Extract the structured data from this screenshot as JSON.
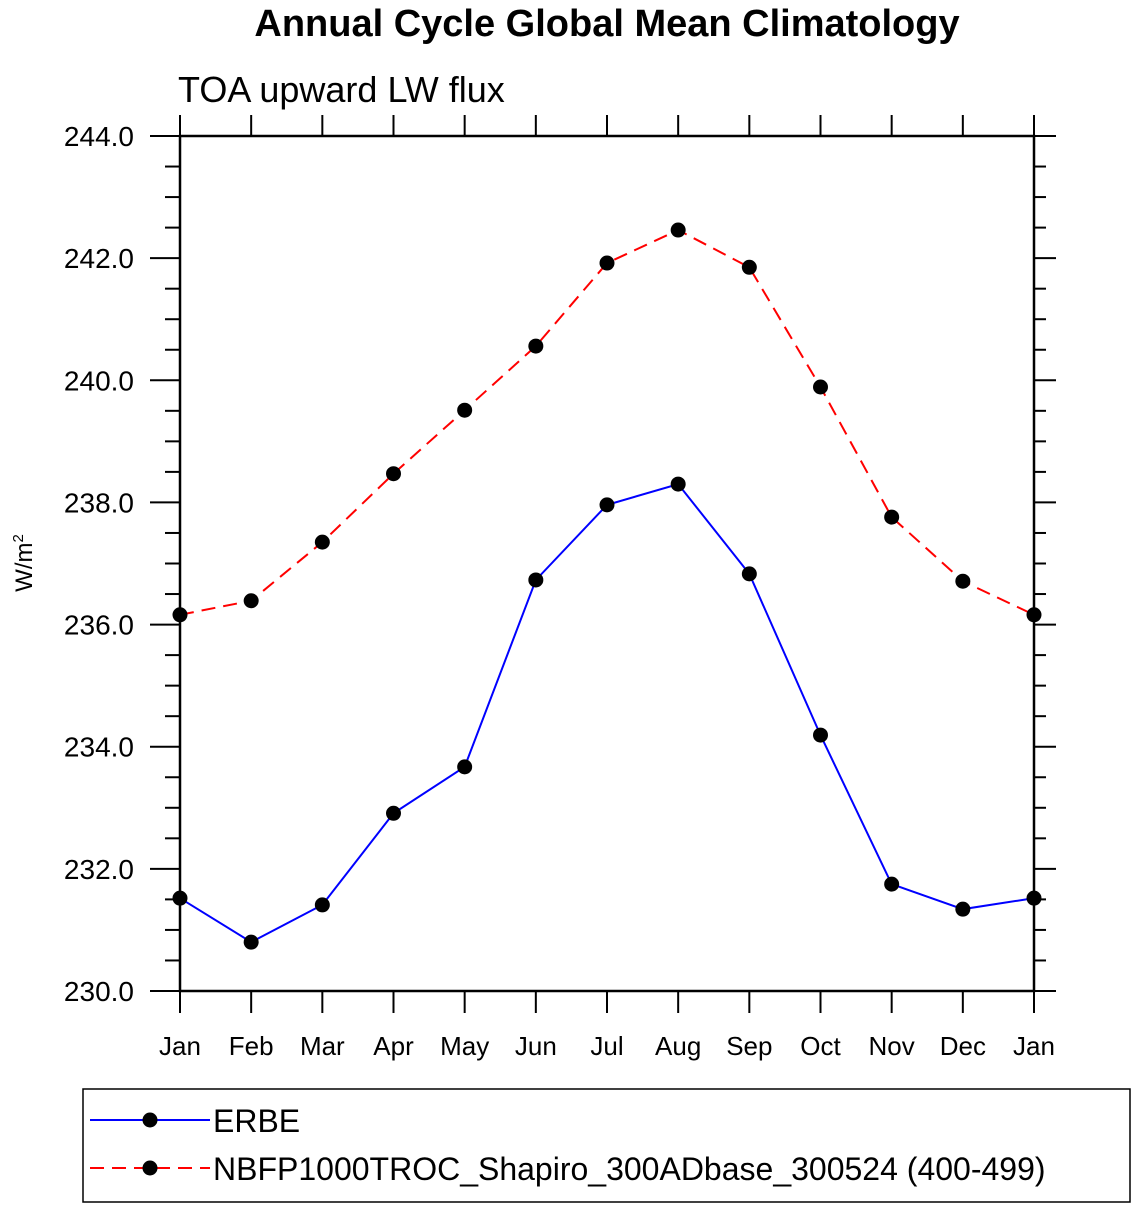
{
  "chart_data": {
    "type": "line",
    "title": "Annual Cycle Global Mean Climatology",
    "subtitle": "TOA upward LW flux",
    "xlabel": "",
    "ylabel": "W/m",
    "ylabel_sup": "2",
    "ylim": [
      230,
      244
    ],
    "yticks": [
      "230.0",
      "232.0",
      "234.0",
      "236.0",
      "238.0",
      "240.0",
      "242.0",
      "244.0"
    ],
    "categories": [
      "Jan",
      "Feb",
      "Mar",
      "Apr",
      "May",
      "Jun",
      "Jul",
      "Aug",
      "Sep",
      "Oct",
      "Nov",
      "Dec",
      "Jan"
    ],
    "grid": false,
    "legend_position": "bottom",
    "series": [
      {
        "name": "ERBE",
        "color": "#0000ff",
        "dash": "solid",
        "values": [
          231.52,
          230.8,
          231.41,
          232.91,
          233.67,
          236.73,
          237.96,
          238.3,
          236.83,
          234.19,
          231.75,
          231.34,
          231.52
        ]
      },
      {
        "name": "NBFP1000TROC_Shapiro_300ADbase_300524 (400-499)",
        "color": "#ff0000",
        "dash": "dashed",
        "values": [
          236.16,
          236.39,
          237.35,
          238.47,
          239.51,
          240.56,
          241.92,
          242.46,
          241.85,
          239.89,
          237.76,
          236.71,
          236.16
        ]
      }
    ]
  }
}
